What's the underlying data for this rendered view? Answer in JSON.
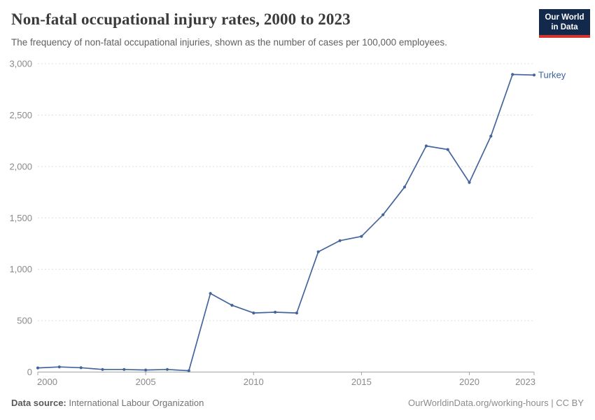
{
  "header": {
    "title": "Non-fatal occupational injury rates, 2000 to 2023",
    "subtitle": "The frequency of non-fatal occupational injuries, shown as the number of cases per 100,000 employees.",
    "logo": {
      "line1": "Our World",
      "line2": "in Data"
    }
  },
  "chart_data": {
    "type": "line",
    "title": "Non-fatal occupational injury rates, 2000 to 2023",
    "xlabel": "",
    "ylabel": "",
    "x": [
      2000,
      2001,
      2002,
      2003,
      2004,
      2005,
      2006,
      2007,
      2008,
      2009,
      2010,
      2011,
      2012,
      2013,
      2014,
      2015,
      2016,
      2017,
      2018,
      2019,
      2020,
      2021,
      2022,
      2023
    ],
    "series": [
      {
        "name": "Turkey",
        "color": "#44659c",
        "values": [
          40,
          50,
          42,
          25,
          25,
          20,
          25,
          13,
          765,
          650,
          575,
          582,
          575,
          1170,
          1278,
          1320,
          1530,
          1800,
          2200,
          2165,
          1845,
          2295,
          2895,
          2890
        ]
      }
    ],
    "xlim": [
      2000,
      2023
    ],
    "ylim": [
      0,
      3000
    ],
    "yticks": [
      0,
      500,
      1000,
      1500,
      2000,
      2500,
      3000
    ],
    "ytick_labels": [
      "0",
      "500",
      "1,000",
      "1,500",
      "2,000",
      "2,500",
      "3,000"
    ],
    "xticks": [
      2000,
      2005,
      2010,
      2015,
      2020,
      2023
    ],
    "xtick_labels": [
      "2000",
      "2005",
      "2010",
      "2015",
      "2020",
      "2023"
    ],
    "grid": "horizontal-dashed",
    "legend_position": "end-of-line-label"
  },
  "footer": {
    "source_label": "Data source:",
    "source_value": " International Labour Organization",
    "attribution": "OurWorldinData.org/working-hours | CC BY"
  },
  "colors": {
    "line": "#44659c",
    "series_label": "#3d649c",
    "grid": "#dedede",
    "axis": "#a3a3a3",
    "tick_text": "#8a8a8a",
    "logo_bg": "#12294b",
    "logo_red": "#d3342e"
  }
}
